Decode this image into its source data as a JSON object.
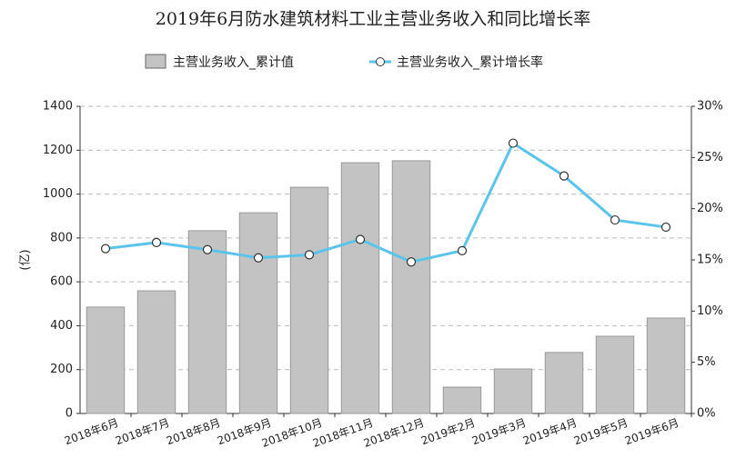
{
  "chart_data": {
    "type": "bar_line",
    "title": "2019年6月防水建筑材料工业主营业务收入和同比增长率",
    "y_label": "(亿)",
    "categories": [
      "2018年6月",
      "2018年7月",
      "2018年8月",
      "2018年9月",
      "2018年10月",
      "2018年11月",
      "2018年12月",
      "2019年2月",
      "2019年3月",
      "2019年4月",
      "2019年5月",
      "2019年6月"
    ],
    "series": [
      {
        "name": "主营业务收入_累计值",
        "type": "bar",
        "color": "#c3c3c3",
        "values": [
          485,
          559,
          833,
          915,
          1031,
          1143,
          1152,
          120,
          203,
          278,
          352,
          435
        ]
      },
      {
        "name": "主营业务收入_累计增长率",
        "type": "line",
        "axis": "y2",
        "color": "#5bc4ea",
        "values": [
          16.1,
          16.7,
          16.0,
          15.2,
          15.5,
          17.0,
          14.8,
          15.9,
          26.4,
          23.2,
          18.9,
          18.2
        ]
      }
    ],
    "ylim": [
      0,
      1400
    ],
    "yticks": [
      0,
      200,
      400,
      600,
      800,
      1000,
      1200,
      1400
    ],
    "y2lim": [
      0,
      30
    ],
    "y2ticks": [
      {
        "value": 0,
        "label": "0%"
      },
      {
        "value": 5,
        "label": "5%"
      },
      {
        "value": 10,
        "label": "10%"
      },
      {
        "value": 15,
        "label": "15%"
      },
      {
        "value": 20,
        "label": "20%"
      },
      {
        "value": 25,
        "label": "25%"
      },
      {
        "value": 30,
        "label": "30%"
      }
    ],
    "grid": true,
    "legend": "top"
  }
}
